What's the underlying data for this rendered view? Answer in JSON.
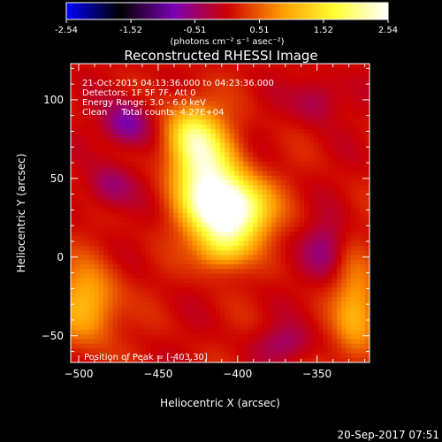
{
  "chart_data": {
    "type": "heatmap",
    "title": "Reconstructed RHESSI Image",
    "xlabel": "Heliocentric X (arcsec)",
    "ylabel": "Heliocentric Y (arcsec)",
    "xlim": [
      -505,
      -317
    ],
    "ylim": [
      -67,
      123
    ],
    "x_ticks": [
      -500,
      -450,
      -400,
      -350
    ],
    "y_ticks": [
      -50,
      0,
      50,
      100
    ],
    "colorbar": {
      "range": [
        -2.54,
        2.54
      ],
      "ticks": [
        "-2.54",
        "-1.52",
        "-0.51",
        "0.51",
        "1.52",
        "2.54"
      ],
      "units": "(photons cm⁻² s⁻¹ asec⁻²)",
      "stops": [
        "#0000ff",
        "#000000",
        "#7a00b4",
        "#cc0000",
        "#ff9900",
        "#ffff33",
        "#ffffff"
      ]
    },
    "annotations": [
      "21-Oct-2015 04:13:36.000 to 04:23:36.000",
      "Detectors: 1F 5F 7F, Att 0",
      "Energy Range: 3.0 - 6.0 keV",
      "Clean     Total counts: 4.27E+04"
    ],
    "peak_label": "Position of Peak = [-403,30]",
    "peak": [
      -403,
      30
    ],
    "sources": [
      {
        "x": -403,
        "y": 30,
        "sx": 16,
        "sy": 14,
        "amp": 2.6
      },
      {
        "x": -420,
        "y": 52,
        "sx": 14,
        "sy": 22,
        "amp": 1.9
      },
      {
        "x": -430,
        "y": 78,
        "sx": 11,
        "sy": 14,
        "amp": 1.2
      },
      {
        "x": -410,
        "y": 5,
        "sx": 12,
        "sy": 10,
        "amp": 1.0
      },
      {
        "x": -495,
        "y": -30,
        "sx": 14,
        "sy": 18,
        "amp": 1.1
      },
      {
        "x": -325,
        "y": -35,
        "sx": 10,
        "sy": 22,
        "amp": 1.0
      },
      {
        "x": -470,
        "y": 85,
        "sx": 10,
        "sy": 10,
        "amp": -0.9
      },
      {
        "x": -480,
        "y": 45,
        "sx": 10,
        "sy": 10,
        "amp": -0.6
      },
      {
        "x": -350,
        "y": 100,
        "sx": 10,
        "sy": 10,
        "amp": -0.5
      },
      {
        "x": -345,
        "y": 5,
        "sx": 9,
        "sy": 12,
        "amp": -0.6
      },
      {
        "x": -370,
        "y": -55,
        "sx": 12,
        "sy": 8,
        "amp": -0.5
      }
    ]
  },
  "footer": {
    "timestamp": "20-Sep-2017 07:51"
  }
}
